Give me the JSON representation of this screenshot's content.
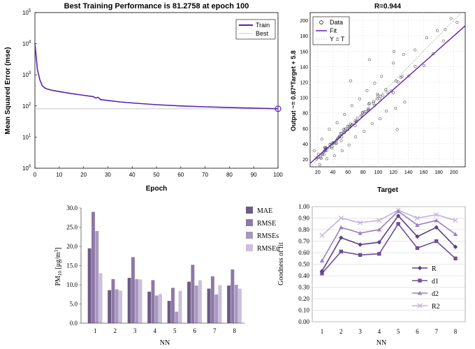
{
  "colors": {
    "purple": "#5B21B6",
    "grid_gray": "#c8c8c8",
    "bar_mae": "#6d5a86",
    "bar_rmse": "#8d78a8",
    "bar_rmses": "#a898c0",
    "bar_rmseu": "#cbbfdc",
    "line_r": "#5c3f86",
    "line_d1": "#6f4e9c",
    "line_d2": "#9a7fc0",
    "line_r2": "#c4b1de"
  },
  "chart_data": [
    {
      "type": "line",
      "id": "training",
      "title": "Best Training Performance is 81.2758 at epoch 100",
      "xlabel": "Epoch",
      "ylabel": "Mean Squared Error  (mse)",
      "xlim": [
        0,
        100
      ],
      "ylim": [
        1,
        100000
      ],
      "yscale": "log",
      "x_ticks": [
        0,
        10,
        20,
        30,
        40,
        50,
        60,
        70,
        80,
        90,
        100
      ],
      "y_ticks": [
        {
          "base": "10",
          "exp": "0",
          "value": 1
        },
        {
          "base": "10",
          "exp": "1",
          "value": 10
        },
        {
          "base": "10",
          "exp": "2",
          "value": 100
        },
        {
          "base": "10",
          "exp": "3",
          "value": 1000
        },
        {
          "base": "10",
          "exp": "4",
          "value": 10000
        },
        {
          "base": "10",
          "exp": "5",
          "value": 100000
        }
      ],
      "legend": [
        "Train",
        "Best"
      ],
      "legend_position": "top-right",
      "best_value": 81.2758,
      "best_epoch": 100,
      "series": [
        {
          "name": "Train",
          "x": [
            0,
            0.5,
            1,
            2,
            3,
            4,
            5,
            7,
            10,
            15,
            20,
            24,
            25,
            26,
            27,
            30,
            35,
            40,
            50,
            60,
            70,
            80,
            90,
            100
          ],
          "y": [
            10000,
            4000,
            1500,
            700,
            450,
            380,
            350,
            320,
            290,
            250,
            220,
            200,
            180,
            190,
            160,
            150,
            135,
            125,
            110,
            100,
            94,
            89,
            85,
            81.2758
          ]
        },
        {
          "name": "Best",
          "x": [
            0,
            100
          ],
          "y": [
            81.2758,
            81.2758
          ]
        }
      ]
    },
    {
      "type": "scatter",
      "id": "regression",
      "title": "R=0.944",
      "xlabel": "Target",
      "ylabel": "Output ~= 0.87*Target + 5.8",
      "xlim": [
        10,
        215
      ],
      "ylim": [
        10,
        210
      ],
      "x_ticks": [
        20,
        40,
        60,
        80,
        100,
        120,
        140,
        160,
        180,
        200
      ],
      "y_ticks": [
        20,
        40,
        60,
        80,
        100,
        120,
        140,
        160,
        180,
        200
      ],
      "legend": [
        "Data",
        "Fit",
        "Y = T"
      ],
      "legend_position": "top-left",
      "fit": {
        "slope": 0.87,
        "intercept": 5.8
      },
      "r": 0.944,
      "points": [
        [
          18.5,
          20.2
        ],
        [
          24.5,
          21.1
        ],
        [
          21.2,
          22.4
        ],
        [
          23.9,
          22.2
        ],
        [
          26.3,
          26.1
        ],
        [
          25.5,
          26.9
        ],
        [
          29.3,
          34.9
        ],
        [
          19.0,
          21.9
        ],
        [
          20.9,
          26.3
        ],
        [
          30.4,
          31.1
        ],
        [
          28.3,
          25.9
        ],
        [
          29.3,
          31.3
        ],
        [
          32.3,
          31.4
        ],
        [
          36.1,
          39.1
        ],
        [
          28.3,
          29.7
        ],
        [
          31.0,
          34.7
        ],
        [
          29.9,
          34.9
        ],
        [
          35.5,
          35.1
        ],
        [
          37.6,
          39.4
        ],
        [
          39.1,
          36.6
        ],
        [
          40.2,
          41.0
        ],
        [
          38.9,
          34.4
        ],
        [
          31.1,
          33.8
        ],
        [
          40.0,
          40.5
        ],
        [
          43.3,
          40.4
        ],
        [
          44.9,
          40.4
        ],
        [
          45.1,
          44.3
        ],
        [
          49.0,
          49.9
        ],
        [
          42.1,
          41.5
        ],
        [
          45.9,
          46.2
        ],
        [
          51.1,
          43.9
        ],
        [
          49.0,
          48.8
        ],
        [
          47.5,
          48.1
        ],
        [
          51.7,
          48.6
        ],
        [
          51.4,
          53.1
        ],
        [
          50.4,
          53.6
        ],
        [
          55.8,
          57.9
        ],
        [
          54.3,
          54.6
        ],
        [
          55.3,
          54.5
        ],
        [
          59.9,
          58.4
        ],
        [
          54.3,
          58.7
        ],
        [
          57.0,
          59.4
        ],
        [
          61.3,
          62.4
        ],
        [
          59.5,
          62.8
        ],
        [
          63.5,
          65.7
        ],
        [
          62.5,
          61.5
        ],
        [
          69.6,
          63.4
        ],
        [
          65.3,
          64.6
        ],
        [
          69.6,
          70.0
        ],
        [
          64.9,
          64.0
        ],
        [
          70.7,
          68.3
        ],
        [
          71.2,
          69.0
        ],
        [
          72.4,
          73.1
        ],
        [
          77.1,
          75.8
        ],
        [
          79.3,
          79.7
        ],
        [
          79.1,
          76.3
        ],
        [
          79.2,
          80.2
        ],
        [
          81.5,
          81.1
        ],
        [
          83.3,
          81.6
        ],
        [
          87.0,
          85.5
        ],
        [
          86.9,
          82.9
        ],
        [
          87.4,
          91.3
        ],
        [
          87.3,
          84.1
        ],
        [
          88.3,
          92.4
        ],
        [
          93.5,
          92.4
        ],
        [
          95.4,
          89.7
        ],
        [
          93.9,
          94.7
        ],
        [
          98.6,
          98.2
        ],
        [
          99.1,
          104.3
        ],
        [
          99.8,
          102.0
        ],
        [
          101.9,
          98.3
        ],
        [
          102.9,
          101.0
        ],
        [
          106.2,
          102.8
        ],
        [
          110.0,
          110.2
        ],
        [
          111.9,
          106.7
        ],
        [
          117.4,
          108.3
        ],
        [
          119.9,
          106.1
        ],
        [
          123.7,
          121.1
        ],
        [
          126.0,
          120.1
        ],
        [
          129.9,
          125.9
        ],
        [
          131.5,
          127.2
        ],
        [
          140.5,
          128.0
        ],
        [
          149.0,
          140.3
        ],
        [
          160.5,
          141.2
        ],
        [
          172.5,
          156.6
        ],
        [
          186.2,
          173.2
        ],
        [
          15.3,
          30.8
        ],
        [
          25.4,
          45.8
        ],
        [
          35.4,
          58.6
        ],
        [
          45.6,
          67.2
        ],
        [
          55.4,
          77.9
        ],
        [
          65.1,
          89.3
        ],
        [
          75.6,
          98.1
        ],
        [
          85.2,
          108.7
        ],
        [
          95.3,
          118.4
        ],
        [
          104.4,
          127.3
        ],
        [
          120.2,
          144.6
        ],
        [
          133.5,
          155.6
        ],
        [
          22.8,
          12.7
        ],
        [
          32.2,
          20.5
        ],
        [
          42.1,
          24.4
        ],
        [
          52.3,
          30.8
        ],
        [
          61.4,
          38.2
        ],
        [
          70.1,
          48.7
        ],
        [
          81.4,
          55.9
        ],
        [
          91.9,
          66.0
        ],
        [
          102.5,
          72.3
        ],
        [
          110.8,
          82.4
        ],
        [
          122.9,
          85.9
        ],
        [
          135.1,
          93.9
        ],
        [
          125.1,
          58.4
        ],
        [
          88.3,
          148.9
        ],
        [
          63.5,
          121.6
        ],
        [
          120.9,
          159.3
        ],
        [
          188.6,
          188.1
        ],
        [
          164.1,
          177.2
        ],
        [
          148.6,
          161.6
        ],
        [
          178.2,
          186.7
        ],
        [
          204.3,
          197.3
        ],
        [
          196.2,
          202.3
        ]
      ]
    },
    {
      "type": "bar",
      "id": "errors",
      "xlabel": "NN",
      "ylabel": {
        "main": "PM",
        "sub": "10",
        "units": " [μg/m",
        "sup": "3",
        "close": "]"
      },
      "ylim": [
        0,
        30
      ],
      "y_ticks": [
        "0.0",
        "5.0",
        "10.0",
        "15.0",
        "20.0",
        "25.0",
        "30.0"
      ],
      "categories": [
        "1",
        "2",
        "3",
        "4",
        "5",
        "6",
        "7",
        "8"
      ],
      "legend_position": "right",
      "series": [
        {
          "name": "MAE",
          "values": [
            19.5,
            8.6,
            11.8,
            8.2,
            5.8,
            10.8,
            9.0,
            9.8
          ]
        },
        {
          "name": "RMSE",
          "values": [
            29.0,
            11.5,
            17.2,
            11.2,
            9.2,
            15.2,
            12.2,
            14.0
          ]
        },
        {
          "name": "RMSEs",
          "values": [
            24.0,
            8.8,
            11.5,
            7.2,
            3.0,
            9.8,
            7.5,
            10.0
          ]
        },
        {
          "name": "RMSEu",
          "values": [
            13.0,
            8.5,
            11.4,
            7.6,
            8.4,
            11.2,
            9.9,
            9.0
          ]
        }
      ]
    },
    {
      "type": "line",
      "id": "goodness",
      "xlabel": "NN",
      "ylabel": "Goodness of fit",
      "ylim": [
        0,
        1
      ],
      "y_ticks": [
        "0.00",
        "0.10",
        "0.20",
        "0.30",
        "0.40",
        "0.50",
        "0.60",
        "0.70",
        "0.80",
        "0.90",
        "1.00"
      ],
      "categories": [
        "1",
        "2",
        "3",
        "4",
        "5",
        "6",
        "7",
        "8"
      ],
      "legend_position": "bottom-right",
      "series": [
        {
          "name": "R",
          "marker": "diamond",
          "values": [
            0.44,
            0.73,
            0.67,
            0.69,
            0.92,
            0.74,
            0.82,
            0.65
          ]
        },
        {
          "name": "d1",
          "marker": "square",
          "values": [
            0.42,
            0.61,
            0.58,
            0.59,
            0.85,
            0.64,
            0.7,
            0.55
          ]
        },
        {
          "name": "d2",
          "marker": "triangle",
          "values": [
            0.53,
            0.82,
            0.77,
            0.8,
            0.96,
            0.84,
            0.88,
            0.76
          ]
        },
        {
          "name": "R2",
          "marker": "cross",
          "values": [
            0.75,
            0.9,
            0.86,
            0.88,
            0.97,
            0.9,
            0.93,
            0.88
          ]
        }
      ]
    }
  ]
}
